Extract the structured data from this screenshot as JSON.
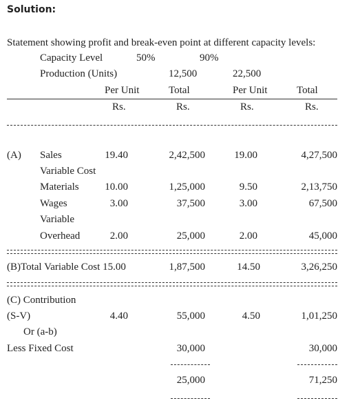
{
  "header": {
    "title": "Solution:"
  },
  "intro": "Statement showing profit and break-even point at different capacity levels:",
  "capacity": {
    "label": "Capacity Level",
    "levels": [
      "50%",
      "90%"
    ]
  },
  "production": {
    "label": "Production (Units)",
    "values": [
      "12,500",
      "22,500"
    ]
  },
  "column_headers": [
    "Per Unit",
    "Total",
    "Per Unit",
    "Total"
  ],
  "units": [
    "Rs.",
    "Rs.",
    "Rs.",
    "Rs."
  ],
  "rows": [
    [
      "(A)",
      "Sales",
      "19.40",
      "2,42,500",
      "19.00",
      "4,27,500"
    ],
    [
      "Variable Cost"
    ],
    [
      "Materials",
      "10.00",
      "1,25,000",
      "9.50",
      "2,13,750"
    ],
    [
      "Wages",
      "3.00",
      "37,500",
      "3.00",
      "67,500"
    ],
    [
      "Variable"
    ],
    [
      "Overhead",
      "2.00",
      "25,000",
      "2.00",
      "45,000"
    ],
    [
      "(B)Total Variable Cost 15.00",
      "1,87,500",
      "14.50",
      "3,26,250"
    ],
    [
      "(C) Contribution"
    ],
    [
      "(S-V)",
      "4.40",
      "55,000",
      "4.50",
      "1,01,250"
    ],
    [
      "Or (a-b)"
    ],
    [
      "Less Fixed Cost",
      "30,000",
      "30,000"
    ],
    [
      "25,000",
      "71,250"
    ]
  ]
}
